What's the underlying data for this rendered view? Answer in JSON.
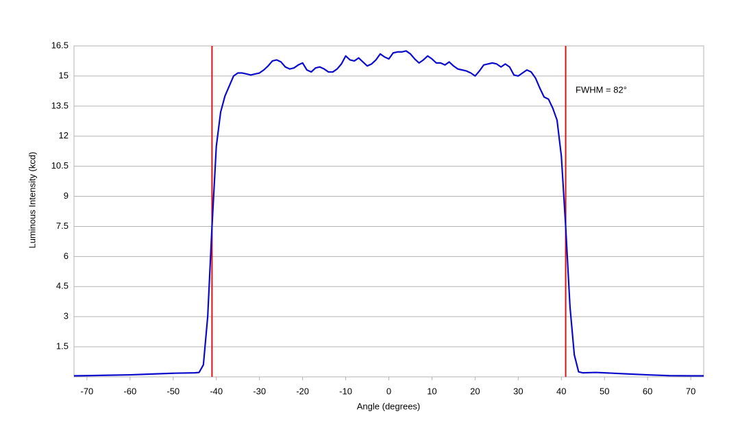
{
  "chart_data": {
    "type": "line",
    "x_label": "Angle (degrees)",
    "y_label": "Luminous Intensity (kcd)",
    "annotation": "FWHM = 82°",
    "xlim": [
      -73,
      73
    ],
    "xticks": [
      -70,
      -60,
      -50,
      -40,
      -30,
      -20,
      -10,
      0,
      10,
      20,
      30,
      40,
      50,
      60,
      70
    ],
    "ylim": [
      0,
      16.5
    ],
    "yticks": [
      1.5,
      3,
      4.5,
      6,
      7.5,
      9,
      10.5,
      12,
      13.5,
      15,
      16.5
    ],
    "grid": true,
    "vlines": [
      -41,
      41
    ],
    "vline_color": "#dd1111",
    "series": [
      {
        "color": "#0a0acc",
        "x": [
          -73,
          -70,
          -65,
          -60,
          -55,
          -50,
          -45,
          -44,
          -43,
          -42,
          -41,
          -40,
          -39,
          -38,
          -37,
          -36,
          -35,
          -34,
          -33,
          -32,
          -31,
          -30,
          -29,
          -28,
          -27,
          -26,
          -25,
          -24,
          -23,
          -22,
          -21,
          -20,
          -19,
          -18,
          -17,
          -16,
          -15,
          -14,
          -13,
          -12,
          -11,
          -10,
          -9,
          -8,
          -7,
          -6,
          -5,
          -4,
          -3,
          -2,
          -1,
          0,
          1,
          2,
          3,
          4,
          5,
          6,
          7,
          8,
          9,
          10,
          11,
          12,
          13,
          14,
          15,
          16,
          17,
          18,
          19,
          20,
          21,
          22,
          23,
          24,
          25,
          26,
          27,
          28,
          29,
          30,
          31,
          32,
          33,
          34,
          35,
          36,
          37,
          38,
          39,
          40,
          41,
          42,
          43,
          44,
          45,
          48,
          50,
          55,
          60,
          65,
          70,
          73
        ],
        "values": [
          0.05,
          0.06,
          0.08,
          0.1,
          0.14,
          0.18,
          0.2,
          0.22,
          0.6,
          3,
          7.5,
          11.5,
          13.2,
          14,
          14.5,
          15,
          15.15,
          15.15,
          15.1,
          15.05,
          15.1,
          15.15,
          15.3,
          15.5,
          15.75,
          15.8,
          15.7,
          15.45,
          15.35,
          15.4,
          15.55,
          15.65,
          15.3,
          15.2,
          15.4,
          15.45,
          15.35,
          15.2,
          15.2,
          15.35,
          15.6,
          16.0,
          15.8,
          15.75,
          15.9,
          15.7,
          15.5,
          15.6,
          15.8,
          16.1,
          15.95,
          15.85,
          16.15,
          16.2,
          16.2,
          16.25,
          16.1,
          15.85,
          15.65,
          15.8,
          16.0,
          15.85,
          15.65,
          15.65,
          15.55,
          15.7,
          15.5,
          15.35,
          15.3,
          15.25,
          15.15,
          15.0,
          15.25,
          15.55,
          15.6,
          15.65,
          15.6,
          15.45,
          15.6,
          15.45,
          15.05,
          15.0,
          15.15,
          15.3,
          15.2,
          14.9,
          14.4,
          13.95,
          13.85,
          13.4,
          12.8,
          11,
          7.5,
          3.5,
          1.1,
          0.25,
          0.2,
          0.22,
          0.2,
          0.15,
          0.1,
          0.06,
          0.05,
          0.05
        ]
      }
    ]
  }
}
